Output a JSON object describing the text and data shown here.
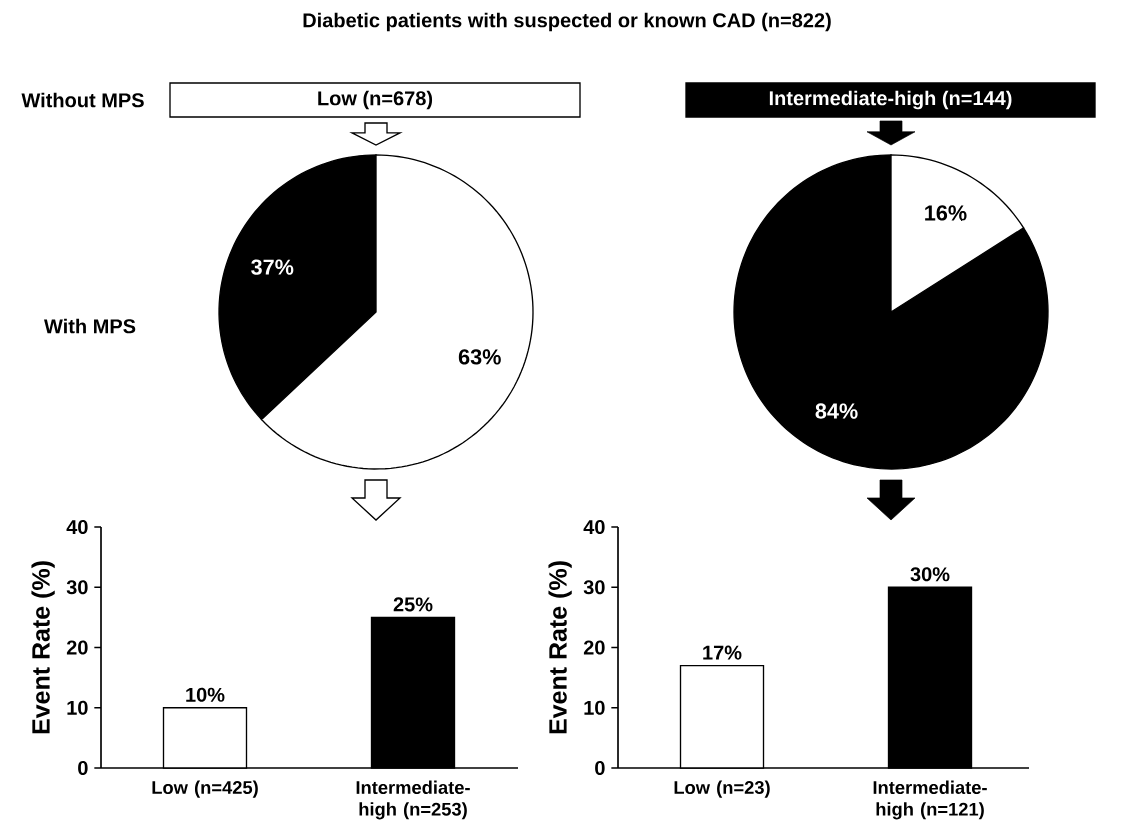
{
  "chart_data": [
    {
      "type": "pie",
      "title": "Low (n=678)",
      "categories": [
        null,
        null
      ],
      "values": [
        37,
        63
      ],
      "colors": [
        "#000000",
        "#ffffff"
      ],
      "value_labels": [
        "37%",
        "63%"
      ],
      "annotations": [
        "Diabetic patients with suspected or known CAD (n=822)",
        "Without MPS",
        "With MPS"
      ]
    },
    {
      "type": "pie",
      "title": "Intermediate-high (n=144)",
      "categories": [
        null,
        null
      ],
      "values": [
        84,
        16
      ],
      "colors": [
        "#000000",
        "#ffffff"
      ],
      "value_labels": [
        "84%",
        "16%"
      ]
    },
    {
      "type": "bar",
      "categories": [
        "Low (n=425)",
        "Intermediate-high (n=253)"
      ],
      "values": [
        10,
        25
      ],
      "colors": [
        "#ffffff",
        "#000000"
      ],
      "value_labels": [
        "10%",
        "25%"
      ],
      "ylabel": "Event Rate (%)",
      "ylim": [
        0,
        40
      ],
      "yticks": [
        0,
        10,
        20,
        30,
        40
      ]
    },
    {
      "type": "bar",
      "categories": [
        "Low (n=23)",
        "Intermediate-high (n=121)"
      ],
      "values": [
        17,
        30
      ],
      "colors": [
        "#ffffff",
        "#000000"
      ],
      "value_labels": [
        "17%",
        "30%"
      ],
      "ylabel": "Event Rate (%)",
      "ylim": [
        0,
        40
      ],
      "yticks": [
        0,
        10,
        20,
        30,
        40
      ]
    }
  ]
}
